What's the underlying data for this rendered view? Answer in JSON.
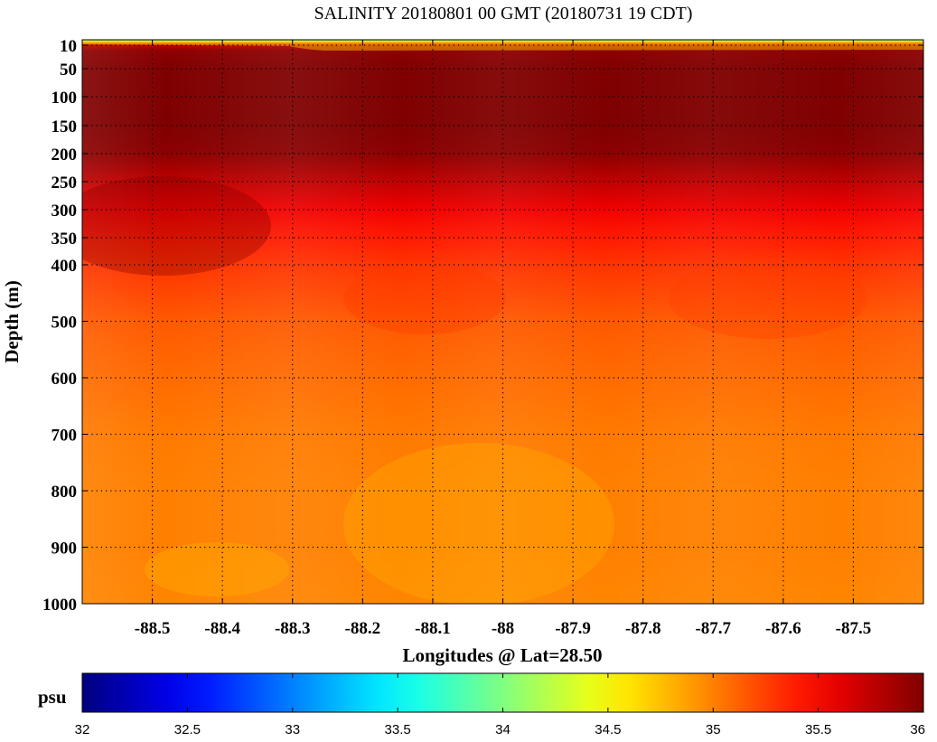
{
  "chart_data": {
    "type": "heatmap",
    "title": "SALINITY 20180801 00 GMT (20180731 19 CDT)",
    "xlabel": "Longitudes @ Lat=28.50",
    "ylabel": "Depth (m)",
    "x_ticks": [
      "-88.5",
      "-88.4",
      "-88.3",
      "-88.2",
      "-88.1",
      "-88",
      "-87.9",
      "-87.8",
      "-87.7",
      "-87.6",
      "-87.5"
    ],
    "y_ticks": [
      "10",
      "50",
      "100",
      "150",
      "200",
      "250",
      "300",
      "350",
      "400",
      "500",
      "600",
      "700",
      "800",
      "900",
      "1000"
    ],
    "xlim": [
      -88.6,
      -87.4
    ],
    "ylim": [
      0,
      1000
    ],
    "y_scale": "piecewise: 0-400 m expanded, 400-1000 m linear",
    "grid": true,
    "colorbar": {
      "unit": "psu",
      "min": 32,
      "max": 36,
      "ticks": [
        "32",
        "32.5",
        "33",
        "33.5",
        "34",
        "34.5",
        "35",
        "35.5",
        "36"
      ],
      "colormap": "jet"
    },
    "depth_profile": [
      {
        "depth": 0,
        "value": 33.6
      },
      {
        "depth": 3,
        "value": 34.4
      },
      {
        "depth": 6,
        "value": 35.2
      },
      {
        "depth": 10,
        "value": 35.75
      },
      {
        "depth": 20,
        "value": 35.95
      },
      {
        "depth": 50,
        "value": 36.0
      },
      {
        "depth": 100,
        "value": 36.05
      },
      {
        "depth": 150,
        "value": 36.05
      },
      {
        "depth": 200,
        "value": 35.95
      },
      {
        "depth": 250,
        "value": 35.75
      },
      {
        "depth": 300,
        "value": 35.55
      },
      {
        "depth": 350,
        "value": 35.4
      },
      {
        "depth": 400,
        "value": 35.3
      },
      {
        "depth": 500,
        "value": 35.15
      },
      {
        "depth": 600,
        "value": 35.08
      },
      {
        "depth": 700,
        "value": 35.02
      },
      {
        "depth": 800,
        "value": 35.0
      },
      {
        "depth": 900,
        "value": 35.0
      },
      {
        "depth": 1000,
        "value": 34.98
      }
    ]
  }
}
